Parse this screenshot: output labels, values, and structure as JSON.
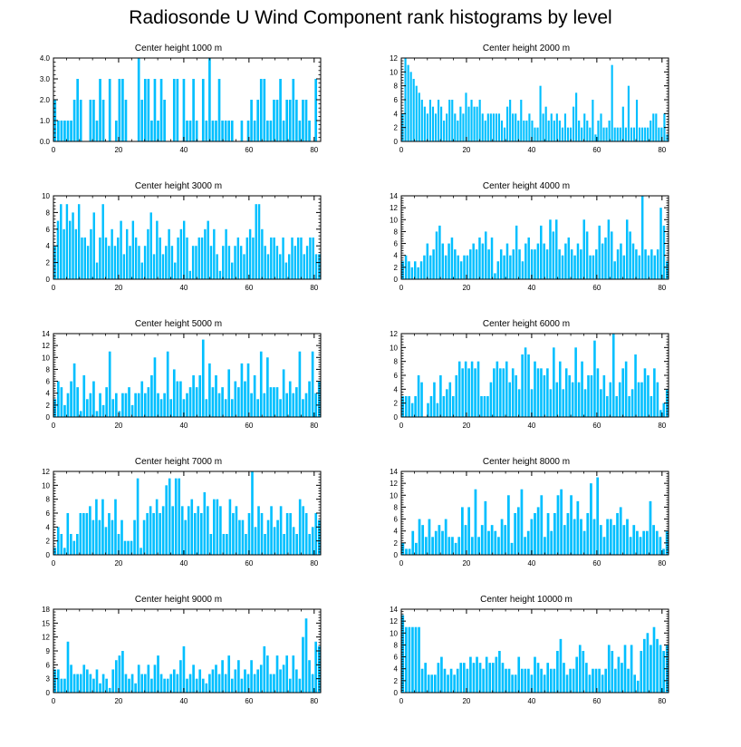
{
  "title": "Radiosonde U Wind Component rank histograms by level",
  "colors": {
    "bar": "#00bfff",
    "axis": "#000000",
    "background": "#ffffff"
  },
  "chart_data": [
    {
      "type": "bar",
      "title": "Center height 1000 m",
      "xlabel": "",
      "ylabel": "",
      "xlim": [
        0,
        82
      ],
      "ylim": [
        0,
        4
      ],
      "x_ticks": [
        0,
        20,
        40,
        60,
        80
      ],
      "y_ticks": [
        0,
        1,
        2,
        3,
        4
      ],
      "y_tick_labels": [
        "0.0",
        "1.0",
        "2.0",
        "3.0",
        "4.0"
      ],
      "values": [
        2,
        1,
        1,
        1,
        1,
        1,
        2,
        3,
        2,
        0,
        0,
        2,
        2,
        1,
        3,
        2,
        0,
        3,
        0,
        1,
        3,
        3,
        2,
        0,
        0,
        0,
        4,
        2,
        3,
        3,
        1,
        3,
        1,
        3,
        2,
        0,
        0,
        3,
        3,
        0,
        3,
        1,
        1,
        3,
        1,
        0,
        3,
        1,
        4,
        1,
        1,
        3,
        1,
        1,
        1,
        1,
        0,
        0,
        1,
        0,
        1,
        2,
        1,
        2,
        3,
        3,
        1,
        1,
        2,
        2,
        3,
        1,
        2,
        2,
        3,
        2,
        1,
        2,
        2,
        1,
        0,
        3,
        0
      ]
    },
    {
      "type": "bar",
      "title": "Center height 2000 m",
      "xlabel": "",
      "ylabel": "",
      "xlim": [
        0,
        82
      ],
      "ylim": [
        0,
        12
      ],
      "x_ticks": [
        0,
        20,
        40,
        60,
        80
      ],
      "y_ticks": [
        0,
        2,
        4,
        6,
        8,
        10,
        12
      ],
      "y_tick_labels": [
        "0",
        "2",
        "4",
        "6",
        "8",
        "10",
        "12"
      ],
      "values": [
        4,
        12,
        11,
        10,
        9,
        8,
        7,
        6,
        5,
        4,
        6,
        5,
        4,
        6,
        5,
        3,
        4,
        6,
        6,
        4,
        3,
        5,
        4,
        7,
        5,
        6,
        5,
        5,
        6,
        4,
        3,
        4,
        4,
        4,
        4,
        4,
        3,
        2,
        5,
        6,
        4,
        4,
        3,
        6,
        3,
        3,
        4,
        3,
        2,
        2,
        8,
        4,
        5,
        3,
        4,
        3,
        4,
        3,
        2,
        4,
        2,
        2,
        5,
        7,
        3,
        2,
        4,
        3,
        2,
        6,
        1,
        3,
        4,
        2,
        2,
        3,
        11,
        2,
        2,
        2,
        5,
        2,
        8,
        2,
        2,
        6,
        2,
        2,
        2,
        2,
        3,
        4,
        4,
        2,
        2,
        4,
        1
      ]
    },
    {
      "type": "bar",
      "title": "Center height 3000 m",
      "xlabel": "",
      "ylabel": "",
      "xlim": [
        0,
        82
      ],
      "ylim": [
        0,
        10
      ],
      "x_ticks": [
        0,
        20,
        40,
        60,
        80
      ],
      "y_ticks": [
        0,
        2,
        4,
        6,
        8,
        10
      ],
      "y_tick_labels": [
        "0",
        "2",
        "4",
        "6",
        "8",
        "10"
      ],
      "values": [
        4,
        7,
        9,
        6,
        9,
        7,
        8,
        6,
        9,
        5,
        5,
        4,
        6,
        8,
        2,
        5,
        9,
        5,
        4,
        6,
        4,
        5,
        7,
        3,
        6,
        4,
        7,
        5,
        4,
        2,
        4,
        6,
        8,
        3,
        7,
        5,
        3,
        4,
        6,
        4,
        2,
        5,
        6,
        7,
        5,
        1,
        4,
        4,
        5,
        5,
        6,
        7,
        4,
        6,
        3,
        1,
        4,
        6,
        4,
        2,
        4,
        5,
        4,
        3,
        5,
        6,
        5,
        9,
        9,
        6,
        4,
        3,
        5,
        5,
        4,
        3,
        5,
        2,
        3,
        5,
        4,
        5,
        5,
        3,
        4,
        5,
        5,
        3,
        3
      ]
    },
    {
      "type": "bar",
      "title": "Center height 4000 m",
      "xlabel": "",
      "ylabel": "",
      "xlim": [
        0,
        82
      ],
      "ylim": [
        0,
        14
      ],
      "x_ticks": [
        0,
        20,
        40,
        60,
        80
      ],
      "y_ticks": [
        0,
        2,
        4,
        6,
        8,
        10,
        12,
        14
      ],
      "y_tick_labels": [
        "0",
        "2",
        "4",
        "6",
        "8",
        "10",
        "12",
        "14"
      ],
      "values": [
        3,
        4,
        3,
        2,
        3,
        2,
        3,
        4,
        6,
        4,
        5,
        8,
        9,
        6,
        4,
        6,
        7,
        5,
        4,
        3,
        4,
        4,
        5,
        6,
        5,
        7,
        6,
        8,
        5,
        7,
        1,
        3,
        5,
        4,
        6,
        4,
        5,
        9,
        5,
        3,
        6,
        7,
        5,
        5,
        6,
        9,
        6,
        5,
        10,
        8,
        10,
        5,
        4,
        6,
        7,
        5,
        4,
        6,
        5,
        10,
        8,
        4,
        4,
        5,
        9,
        6,
        7,
        10,
        8,
        3,
        5,
        6,
        4,
        10,
        8,
        6,
        5,
        4,
        14,
        5,
        4,
        5,
        4,
        5,
        12,
        9,
        3
      ]
    },
    {
      "type": "bar",
      "title": "Center height 5000 m",
      "xlabel": "",
      "ylabel": "",
      "xlim": [
        0,
        82
      ],
      "ylim": [
        0,
        14
      ],
      "x_ticks": [
        0,
        20,
        40,
        60,
        80
      ],
      "y_ticks": [
        0,
        2,
        4,
        6,
        8,
        10,
        12,
        14
      ],
      "y_tick_labels": [
        "0",
        "2",
        "4",
        "6",
        "8",
        "10",
        "12",
        "14"
      ],
      "values": [
        3,
        6,
        5,
        2,
        4,
        6,
        9,
        5,
        1,
        7,
        3,
        4,
        6,
        1,
        4,
        2,
        5,
        11,
        3,
        4,
        1,
        4,
        4,
        5,
        2,
        4,
        4,
        6,
        4,
        5,
        7,
        10,
        4,
        3,
        4,
        11,
        3,
        8,
        6,
        6,
        3,
        4,
        5,
        7,
        5,
        7,
        13,
        3,
        9,
        5,
        7,
        4,
        5,
        3,
        8,
        3,
        6,
        5,
        9,
        6,
        9,
        4,
        7,
        3,
        11,
        4,
        10,
        5,
        5,
        5,
        3,
        8,
        4,
        6,
        4,
        5,
        11,
        3,
        4,
        6,
        11,
        4,
        6
      ]
    },
    {
      "type": "bar",
      "title": "Center height 6000 m",
      "xlabel": "",
      "ylabel": "",
      "xlim": [
        0,
        82
      ],
      "ylim": [
        0,
        12
      ],
      "x_ticks": [
        0,
        20,
        40,
        60,
        80
      ],
      "y_ticks": [
        0,
        2,
        4,
        6,
        8,
        10,
        12
      ],
      "y_tick_labels": [
        "0",
        "2",
        "4",
        "6",
        "8",
        "10",
        "12"
      ],
      "values": [
        3,
        3,
        3,
        2,
        3,
        6,
        5,
        0,
        2,
        3,
        5,
        2,
        6,
        3,
        4,
        5,
        3,
        6,
        8,
        7,
        8,
        7,
        8,
        7,
        8,
        3,
        3,
        3,
        5,
        7,
        8,
        7,
        7,
        8,
        5,
        7,
        6,
        4,
        9,
        10,
        9,
        4,
        8,
        7,
        7,
        6,
        7,
        4,
        10,
        5,
        8,
        4,
        7,
        6,
        5,
        10,
        5,
        8,
        4,
        6,
        6,
        11,
        7,
        4,
        6,
        3,
        5,
        12,
        3,
        5,
        7,
        8,
        3,
        4,
        9,
        5,
        5,
        7,
        6,
        3,
        7,
        5,
        1,
        2,
        4
      ]
    },
    {
      "type": "bar",
      "title": "Center height 7000 m",
      "xlabel": "",
      "ylabel": "",
      "xlim": [
        0,
        82
      ],
      "ylim": [
        0,
        12
      ],
      "x_ticks": [
        0,
        20,
        40,
        60,
        80
      ],
      "y_ticks": [
        0,
        2,
        4,
        6,
        8,
        10,
        12
      ],
      "y_tick_labels": [
        "0",
        "2",
        "4",
        "6",
        "8",
        "10",
        "12"
      ],
      "values": [
        1,
        4,
        3,
        1,
        6,
        3,
        2,
        3,
        6,
        6,
        6,
        7,
        5,
        8,
        5,
        8,
        4,
        6,
        5,
        8,
        3,
        5,
        2,
        2,
        2,
        5,
        11,
        1,
        5,
        6,
        7,
        6,
        8,
        6,
        7,
        10,
        11,
        7,
        11,
        11,
        7,
        5,
        7,
        8,
        6,
        7,
        6,
        9,
        7,
        3,
        8,
        8,
        7,
        3,
        3,
        8,
        6,
        7,
        5,
        5,
        3,
        6,
        12,
        4,
        7,
        6,
        3,
        5,
        7,
        4,
        5,
        7,
        3,
        6,
        6,
        4,
        3,
        8,
        7,
        6,
        3,
        4,
        6,
        5
      ]
    },
    {
      "type": "bar",
      "title": "Center height 8000 m",
      "xlabel": "",
      "ylabel": "",
      "xlim": [
        0,
        82
      ],
      "ylim": [
        0,
        14
      ],
      "x_ticks": [
        0,
        20,
        40,
        60,
        80
      ],
      "y_ticks": [
        0,
        2,
        4,
        6,
        8,
        10,
        12,
        14
      ],
      "y_tick_labels": [
        "0",
        "2",
        "4",
        "6",
        "8",
        "10",
        "12",
        "14"
      ],
      "values": [
        2,
        1,
        1,
        4,
        2,
        6,
        5,
        3,
        6,
        3,
        4,
        5,
        4,
        6,
        3,
        3,
        2,
        3,
        8,
        5,
        8,
        3,
        11,
        3,
        5,
        9,
        4,
        5,
        4,
        3,
        6,
        5,
        10,
        2,
        7,
        8,
        11,
        3,
        4,
        6,
        7,
        8,
        10,
        3,
        7,
        4,
        7,
        10,
        11,
        5,
        7,
        10,
        6,
        9,
        6,
        4,
        7,
        12,
        6,
        13,
        5,
        3,
        6,
        6,
        5,
        7,
        8,
        5,
        6,
        3,
        5,
        4,
        3,
        4,
        4,
        9,
        5,
        4,
        3,
        1,
        4
      ]
    },
    {
      "type": "bar",
      "title": "Center height 9000 m",
      "xlabel": "",
      "ylabel": "",
      "xlim": [
        0,
        82
      ],
      "ylim": [
        0,
        18
      ],
      "x_ticks": [
        0,
        20,
        40,
        60,
        80
      ],
      "y_ticks": [
        0,
        3,
        6,
        9,
        12,
        15,
        18
      ],
      "y_tick_labels": [
        "0",
        "3",
        "6",
        "9",
        "12",
        "15",
        "18"
      ],
      "values": [
        5,
        5,
        3,
        3,
        11,
        6,
        4,
        4,
        4,
        6,
        5,
        4,
        3,
        5,
        2,
        4,
        3,
        1,
        5,
        7,
        8,
        9,
        4,
        3,
        4,
        2,
        6,
        4,
        4,
        6,
        3,
        6,
        8,
        4,
        3,
        3,
        4,
        5,
        4,
        7,
        10,
        3,
        4,
        6,
        3,
        5,
        3,
        2,
        4,
        5,
        6,
        4,
        7,
        4,
        8,
        3,
        5,
        7,
        3,
        5,
        4,
        7,
        4,
        5,
        6,
        10,
        8,
        4,
        4,
        8,
        5,
        6,
        8,
        3,
        8,
        5,
        3,
        12,
        16,
        7,
        4,
        11,
        10
      ]
    },
    {
      "type": "bar",
      "title": "Center height 10000 m",
      "xlabel": "",
      "ylabel": "",
      "xlim": [
        0,
        82
      ],
      "ylim": [
        0,
        14
      ],
      "x_ticks": [
        0,
        20,
        40,
        60,
        80
      ],
      "y_ticks": [
        0,
        2,
        4,
        6,
        8,
        10,
        12,
        14
      ],
      "y_tick_labels": [
        "0",
        "2",
        "4",
        "6",
        "8",
        "10",
        "12",
        "14"
      ],
      "values": [
        13,
        11,
        11,
        11,
        11,
        11,
        4,
        5,
        3,
        3,
        3,
        5,
        6,
        4,
        3,
        4,
        3,
        4,
        5,
        5,
        4,
        6,
        5,
        6,
        5,
        4,
        6,
        5,
        5,
        6,
        7,
        5,
        4,
        4,
        3,
        3,
        6,
        4,
        4,
        4,
        3,
        6,
        5,
        4,
        3,
        5,
        4,
        4,
        7,
        9,
        5,
        3,
        4,
        4,
        6,
        8,
        7,
        5,
        3,
        4,
        4,
        4,
        3,
        4,
        8,
        7,
        4,
        6,
        5,
        8,
        4,
        8,
        3,
        2,
        7,
        9,
        10,
        8,
        11,
        9,
        8,
        7,
        8
      ]
    }
  ]
}
